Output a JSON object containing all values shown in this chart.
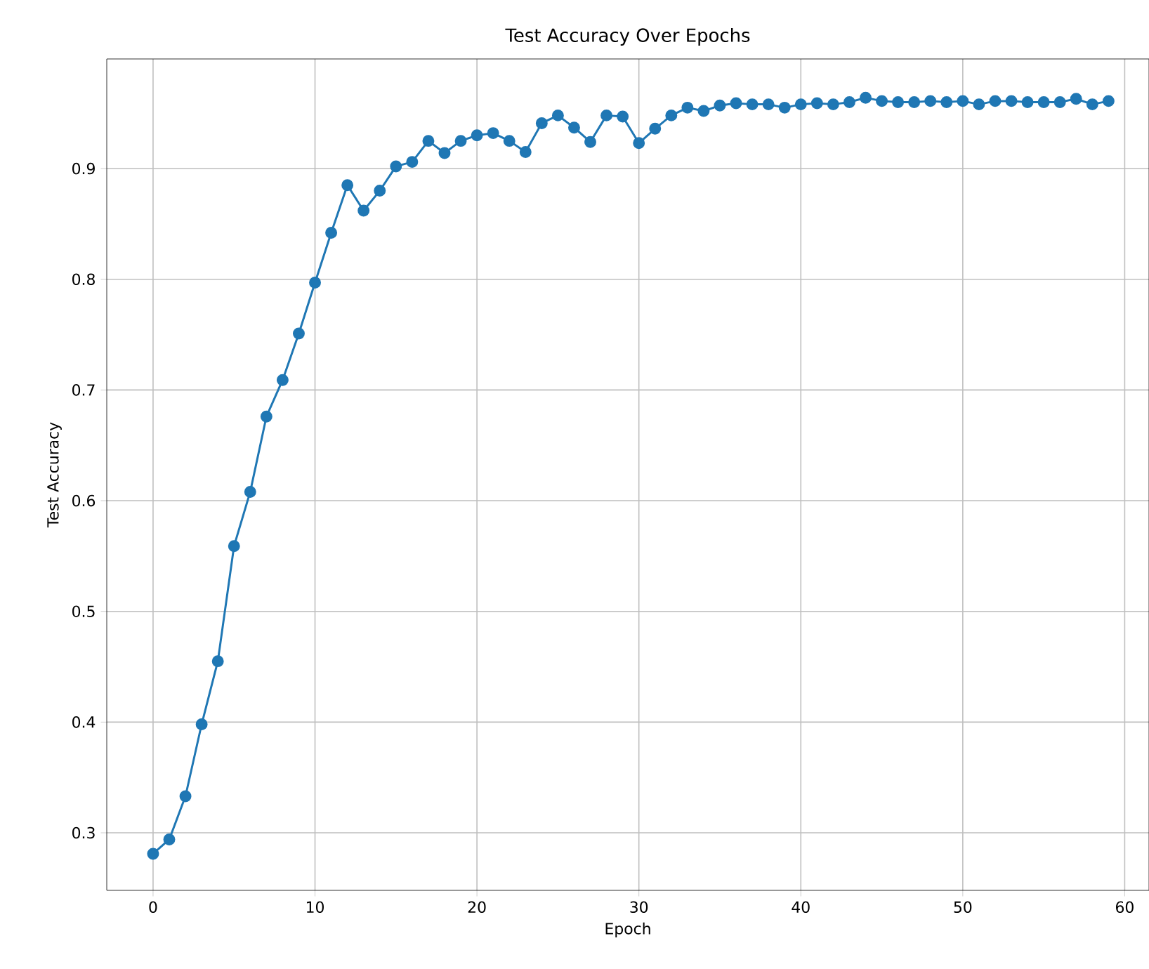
{
  "chart_data": {
    "type": "line",
    "title": "Test Accuracy Over Epochs",
    "xlabel": "Epoch",
    "ylabel": "Test Accuracy",
    "x": [
      0,
      1,
      2,
      3,
      4,
      5,
      6,
      7,
      8,
      9,
      10,
      11,
      12,
      13,
      14,
      15,
      16,
      17,
      18,
      19,
      20,
      21,
      22,
      23,
      24,
      25,
      26,
      27,
      28,
      29,
      30,
      31,
      32,
      33,
      34,
      35,
      36,
      37,
      38,
      39,
      40,
      41,
      42,
      43,
      44,
      45,
      46,
      47,
      48,
      49,
      50,
      51,
      52,
      53,
      54,
      55,
      56,
      57,
      58,
      59
    ],
    "series": [
      {
        "color": "#1f77b4",
        "values": [
          0.281,
          0.294,
          0.333,
          0.398,
          0.455,
          0.559,
          0.608,
          0.676,
          0.709,
          0.751,
          0.797,
          0.842,
          0.885,
          0.862,
          0.88,
          0.902,
          0.906,
          0.925,
          0.914,
          0.925,
          0.93,
          0.932,
          0.925,
          0.915,
          0.941,
          0.948,
          0.937,
          0.924,
          0.948,
          0.947,
          0.923,
          0.936,
          0.948,
          0.955,
          0.952,
          0.957,
          0.959,
          0.958,
          0.958,
          0.955,
          0.958,
          0.959,
          0.958,
          0.96,
          0.964,
          0.961,
          0.96,
          0.96,
          0.961,
          0.96,
          0.961,
          0.958,
          0.961,
          0.961,
          0.96,
          0.96,
          0.96,
          0.963,
          0.958,
          0.961
        ]
      }
    ],
    "xlim": [
      -2.86,
      61.5
    ],
    "ylim": [
      0.248,
      0.999
    ],
    "xticks": [
      0,
      10,
      20,
      30,
      40,
      50,
      60
    ],
    "yticks": [
      0.3,
      0.4,
      0.5,
      0.6,
      0.7,
      0.8,
      0.9
    ],
    "grid": true,
    "marker": "circle",
    "line_style": "solid"
  }
}
